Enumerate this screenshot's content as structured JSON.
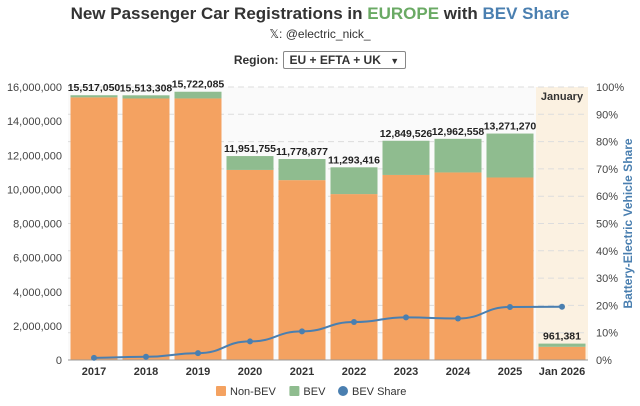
{
  "title": {
    "part1": "New Passenger Car Registrations in ",
    "part2": "EUROPE",
    "part3": " with ",
    "part4": "BEV Share"
  },
  "subtitle": "𝕏: @electric_nick_",
  "region": {
    "label": "Region:",
    "value": "EU + EFTA + UK"
  },
  "colors": {
    "nonbev": "#f4a261",
    "bev": "#8fbc8f",
    "share": "#4a7fb0",
    "europe": "#6aaa64",
    "highlight": "#fbf1e1"
  },
  "chart_data": {
    "type": "bar",
    "categories": [
      "2017",
      "2018",
      "2019",
      "2020",
      "2021",
      "2022",
      "2023",
      "2024",
      "2025",
      "Jan 2026"
    ],
    "totals": [
      15517050,
      15513308,
      15722085,
      11951755,
      11778877,
      11293416,
      12849526,
      12962558,
      13271270,
      961381
    ],
    "total_labels": [
      "15,517,050",
      "15,513,308",
      "15,722,085",
      "11,951,755",
      "11,778,877",
      "11,293,416",
      "12,849,526",
      "12,962,558",
      "13,271,270",
      "961,381"
    ],
    "bev_share_pct": [
      0.8,
      1.2,
      2.5,
      6.8,
      10.5,
      13.9,
      15.6,
      15.2,
      19.4,
      19.5
    ],
    "series": [
      {
        "name": "Non-BEV"
      },
      {
        "name": "BEV"
      },
      {
        "name": "BEV Share"
      }
    ],
    "ylim": [
      0,
      16000000
    ],
    "y_ticks": [
      "0",
      "2,000,000",
      "4,000,000",
      "6,000,000",
      "8,000,000",
      "10,000,000",
      "12,000,000",
      "14,000,000",
      "16,000,000"
    ],
    "y2lim": [
      0,
      100
    ],
    "y2_ticks": [
      "0%",
      "10%",
      "20%",
      "30%",
      "40%",
      "50%",
      "60%",
      "70%",
      "80%",
      "90%",
      "100%"
    ],
    "y2label": "Battery-Electric Vehicle Share",
    "annotation": "January",
    "legend_position": "bottom",
    "grid": true
  }
}
